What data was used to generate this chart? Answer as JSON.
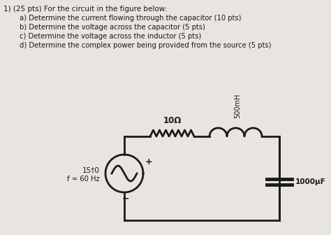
{
  "title_line1": "1) (25 pts) For the circuit in the figure below:",
  "items": [
    "a) Determine the current flowing through the capacitor (10 pts)",
    "b) Determine the voltage across the capacitor (5 pts)",
    "c) Determine the voltage across the inductor (5 pts)",
    "d) Determine the complex power being provided from the source (5 pts)"
  ],
  "source_label1": "15†0",
  "source_label2": "f = 60 Hz",
  "resistor_label": "10Ω",
  "inductor_label": "500mH",
  "capacitor_label": "1000μF",
  "bg_color": "#e8e4e0",
  "text_color": "#1a1a1a",
  "circuit_color": "#1a1a1a"
}
